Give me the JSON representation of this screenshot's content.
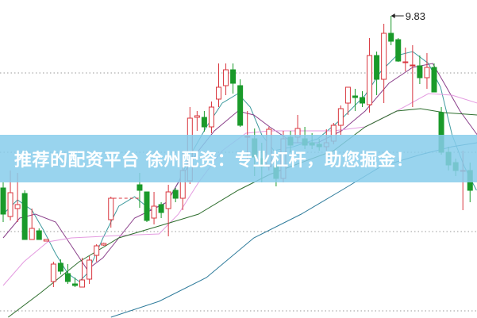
{
  "banner": {
    "text": "推荐的配资平台 徐州配资：专业杠杆，助您掘金！"
  },
  "chart_data": {
    "type": "candlestick",
    "ylim": [
      6.02,
      10.03
    ],
    "grid_levels": [
      9.11,
      8.11,
      7.11,
      6.11
    ],
    "grid": "dotted horizontal",
    "colors": {
      "up": "#d9363e",
      "down": "#1a9a2a",
      "ma5": "#3e9a9e",
      "ma10": "#8a3f8a",
      "ma20": "#e49be0",
      "ma30": "#2e6e2e",
      "ma60": "#2c7a9a"
    },
    "max_annotation": {
      "index": 54,
      "value": 9.83,
      "label": "9.83"
    },
    "gap_line": {
      "from": 15,
      "to": 19,
      "price": 7.53
    },
    "candles": [
      [
        7.66,
        7.73,
        7.23,
        7.33
      ],
      [
        7.3,
        7.88,
        7.25,
        7.6
      ],
      [
        7.4,
        7.85,
        7.23,
        7.45
      ],
      [
        7.59,
        7.63,
        7.01,
        7.01
      ],
      [
        7.01,
        7.4,
        7.01,
        7.15
      ],
      [
        7.12,
        7.15,
        7.01,
        7.01
      ],
      [
        6.99,
        7.01,
        6.99,
        7.01
      ],
      [
        6.48,
        6.73,
        6.41,
        6.7
      ],
      [
        6.71,
        6.76,
        6.57,
        6.61
      ],
      [
        6.58,
        6.7,
        6.45,
        6.48
      ],
      [
        6.45,
        6.53,
        6.41,
        6.43
      ],
      [
        6.41,
        6.78,
        6.41,
        6.5
      ],
      [
        6.51,
        6.8,
        6.45,
        6.75
      ],
      [
        6.81,
        6.95,
        6.73,
        6.93
      ],
      [
        6.94,
        6.97,
        6.93,
        6.96
      ],
      [
        7.26,
        7.55,
        7.16,
        7.53
      ],
      null,
      null,
      null,
      [
        7.7,
        7.85,
        7.41,
        7.63
      ],
      [
        7.61,
        7.61,
        7.23,
        7.25
      ],
      [
        7.28,
        7.61,
        7.2,
        7.43
      ],
      [
        7.45,
        7.48,
        7.28,
        7.35
      ],
      [
        7.4,
        7.7,
        7.05,
        7.61
      ],
      [
        7.63,
        7.66,
        7.48,
        7.53
      ],
      [
        7.53,
        8.13,
        7.38,
        7.88
      ],
      [
        7.75,
        8.68,
        7.71,
        8.54
      ],
      [
        8.55,
        8.63,
        8.38,
        8.57
      ],
      [
        8.55,
        8.63,
        8.37,
        8.43
      ],
      [
        8.43,
        8.75,
        8.35,
        8.68
      ],
      [
        8.78,
        9.23,
        8.68,
        8.93
      ],
      [
        8.95,
        9.23,
        8.83,
        9.15
      ],
      [
        9.15,
        9.23,
        8.85,
        8.98
      ],
      [
        8.95,
        9.03,
        8.43,
        8.45
      ],
      [
        8.3,
        8.63,
        8.0,
        8.31
      ],
      [
        8.28,
        8.41,
        7.81,
        8.05
      ],
      [
        8.03,
        8.23,
        7.73,
        7.93
      ],
      [
        7.93,
        8.43,
        7.88,
        8.4
      ],
      [
        7.93,
        8.08,
        7.68,
        7.78
      ],
      [
        7.78,
        8.38,
        7.73,
        8.28
      ],
      [
        8.3,
        8.38,
        8.11,
        8.2
      ],
      [
        8.3,
        8.58,
        8.23,
        8.41
      ],
      [
        8.28,
        8.43,
        8.15,
        8.2
      ],
      [
        8.23,
        8.35,
        8.15,
        8.2
      ],
      [
        8.21,
        8.28,
        8.13,
        8.18
      ],
      [
        8.18,
        8.4,
        8.13,
        8.23
      ],
      [
        8.25,
        8.48,
        8.21,
        8.45
      ],
      [
        8.45,
        8.7,
        8.33,
        8.66
      ],
      [
        8.73,
        8.93,
        8.58,
        8.93
      ],
      [
        8.82,
        8.91,
        8.63,
        8.8
      ],
      [
        8.8,
        8.88,
        8.68,
        8.73
      ],
      [
        8.71,
        9.55,
        8.61,
        9.33
      ],
      [
        9.33,
        9.38,
        8.83,
        9.03
      ],
      [
        9.03,
        9.73,
        8.73,
        9.61
      ],
      [
        9.61,
        9.83,
        9.46,
        9.51
      ],
      [
        9.53,
        9.55,
        9.25,
        9.26
      ],
      [
        9.24,
        9.43,
        9.13,
        9.25
      ],
      [
        9.2,
        9.46,
        8.68,
        9.21
      ],
      [
        9.2,
        9.33,
        8.97,
        9.05
      ],
      [
        9.05,
        9.36,
        8.91,
        9.18
      ],
      [
        9.18,
        9.23,
        8.87,
        8.87
      ],
      [
        8.61,
        8.68,
        8.08,
        8.11
      ],
      [
        8.11,
        8.18,
        7.88,
        7.95
      ],
      [
        7.98,
        8.03,
        7.81,
        7.88
      ],
      [
        7.87,
        8.13,
        7.38,
        7.88
      ],
      [
        7.88,
        7.98,
        7.48,
        7.63
      ]
    ],
    "candle_format": [
      "open",
      "high",
      "low",
      "close"
    ],
    "moving_averages": [
      {
        "key": "ma5",
        "points": [
          [
            0,
            7.33
          ],
          [
            2,
            7.51
          ],
          [
            4,
            7.38
          ],
          [
            5.6,
            7.13
          ],
          [
            7.3,
            6.83
          ],
          [
            9,
            6.58
          ],
          [
            10.6,
            6.48
          ],
          [
            11.7,
            6.58
          ],
          [
            13.9,
            7.03
          ],
          [
            16.1,
            7.43
          ],
          [
            18.3,
            7.55
          ],
          [
            20.6,
            7.38
          ],
          [
            22.8,
            7.48
          ],
          [
            24.4,
            7.73
          ],
          [
            26.1,
            8.08
          ],
          [
            28.3,
            8.43
          ],
          [
            30.5,
            8.73
          ],
          [
            32.7,
            8.85
          ],
          [
            34.4,
            8.68
          ],
          [
            36,
            8.33
          ],
          [
            37.7,
            8.13
          ],
          [
            40.4,
            8.18
          ],
          [
            43.8,
            8.28
          ],
          [
            47.1,
            8.53
          ],
          [
            50.4,
            8.83
          ],
          [
            52.6,
            9.13
          ],
          [
            54.8,
            9.33
          ],
          [
            57,
            9.38
          ],
          [
            59.2,
            9.23
          ],
          [
            60.9,
            8.93
          ],
          [
            62.5,
            8.33
          ],
          [
            64.2,
            7.93
          ],
          [
            65.9,
            7.63
          ]
        ]
      },
      {
        "key": "ma10",
        "points": [
          [
            0,
            7.03
          ],
          [
            2.3,
            7.28
          ],
          [
            4.5,
            7.33
          ],
          [
            7.3,
            7.23
          ],
          [
            9.5,
            6.93
          ],
          [
            11.7,
            6.63
          ],
          [
            13.9,
            6.78
          ],
          [
            16.1,
            7.03
          ],
          [
            18.3,
            7.28
          ],
          [
            20.6,
            7.38
          ],
          [
            22.8,
            7.48
          ],
          [
            25,
            7.83
          ],
          [
            27.2,
            8.13
          ],
          [
            29.4,
            8.38
          ],
          [
            32.7,
            8.63
          ],
          [
            34.9,
            8.58
          ],
          [
            37.1,
            8.43
          ],
          [
            40.4,
            8.23
          ],
          [
            43.8,
            8.23
          ],
          [
            47.1,
            8.38
          ],
          [
            50.4,
            8.63
          ],
          [
            53.7,
            8.98
          ],
          [
            57,
            9.18
          ],
          [
            59.8,
            9.23
          ],
          [
            61.4,
            8.98
          ],
          [
            63.6,
            8.63
          ],
          [
            66,
            8.33
          ]
        ]
      },
      {
        "key": "ma20",
        "points": [
          [
            0,
            6.43
          ],
          [
            2.9,
            6.73
          ],
          [
            6.2,
            6.98
          ],
          [
            9.5,
            7.03
          ],
          [
            16.1,
            7.06
          ],
          [
            21.7,
            7.08
          ],
          [
            24.4,
            7.33
          ],
          [
            27.2,
            7.73
          ],
          [
            30.5,
            8.13
          ],
          [
            33.8,
            8.35
          ],
          [
            37.1,
            8.38
          ],
          [
            41.5,
            8.38
          ],
          [
            46,
            8.38
          ],
          [
            50.4,
            8.43
          ],
          [
            54.8,
            8.63
          ],
          [
            59.2,
            8.85
          ],
          [
            62.5,
            8.83
          ],
          [
            66,
            8.73
          ]
        ]
      },
      {
        "key": "ma30",
        "points": [
          [
            0.7,
            6.03
          ],
          [
            5.1,
            6.33
          ],
          [
            10.6,
            6.73
          ],
          [
            16.1,
            7.03
          ],
          [
            21.7,
            7.18
          ],
          [
            27.2,
            7.33
          ],
          [
            32.7,
            7.63
          ],
          [
            37.1,
            7.83
          ],
          [
            41.5,
            7.98
          ],
          [
            46,
            8.13
          ],
          [
            50.4,
            8.43
          ],
          [
            54.8,
            8.63
          ],
          [
            58.1,
            8.66
          ],
          [
            61.4,
            8.61
          ],
          [
            66,
            8.58
          ]
        ]
      },
      {
        "key": "ma60",
        "points": [
          [
            15,
            6.03
          ],
          [
            21.7,
            6.23
          ],
          [
            28.3,
            6.53
          ],
          [
            34.9,
            7.03
          ],
          [
            41.5,
            7.33
          ],
          [
            47.1,
            7.63
          ],
          [
            52.6,
            7.93
          ],
          [
            58.1,
            8.08
          ],
          [
            62.5,
            8.18
          ],
          [
            66,
            8.23
          ]
        ]
      }
    ]
  }
}
